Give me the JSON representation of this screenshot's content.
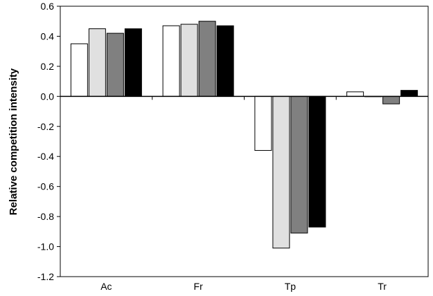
{
  "chart_data": {
    "type": "bar",
    "title": "",
    "xlabel": "",
    "ylabel": "Relative competition intensity",
    "ylim": [
      -1.2,
      0.6
    ],
    "yticks": [
      0.6,
      0.4,
      0.2,
      0.0,
      -0.2,
      -0.4,
      -0.6,
      -0.8,
      -1.0,
      -1.2
    ],
    "ytick_labels": [
      "0.6",
      "0.4",
      "0.2",
      "0.0",
      "-0.2",
      "-0.4",
      "-0.6",
      "-0.8",
      "-1.0",
      "-1.2"
    ],
    "categories": [
      "Ac",
      "Fr",
      "Tp",
      "Tr"
    ],
    "grid": false,
    "legend": "none",
    "series": [
      {
        "color": "#ffffff",
        "values": [
          0.35,
          0.47,
          -0.36,
          0.03
        ]
      },
      {
        "color": "#e0e0e0",
        "values": [
          0.45,
          0.48,
          -1.01,
          0.0
        ]
      },
      {
        "color": "#808080",
        "values": [
          0.42,
          0.5,
          -0.91,
          -0.05
        ]
      },
      {
        "color": "#000000",
        "values": [
          0.45,
          0.47,
          -0.87,
          0.04
        ]
      }
    ]
  }
}
